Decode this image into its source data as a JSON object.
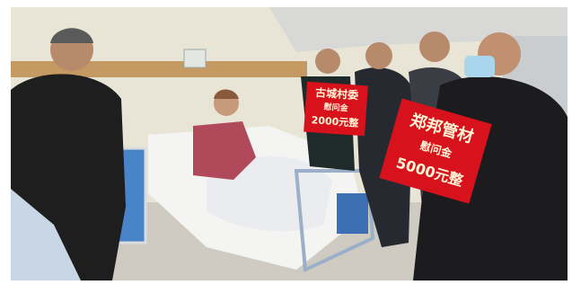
{
  "signs": [
    {
      "lines": [
        "古城村委",
        "慰问金",
        "2000元整"
      ]
    },
    {
      "lines": [
        "郑邦管材",
        "慰问金",
        "5000元整"
      ]
    }
  ]
}
